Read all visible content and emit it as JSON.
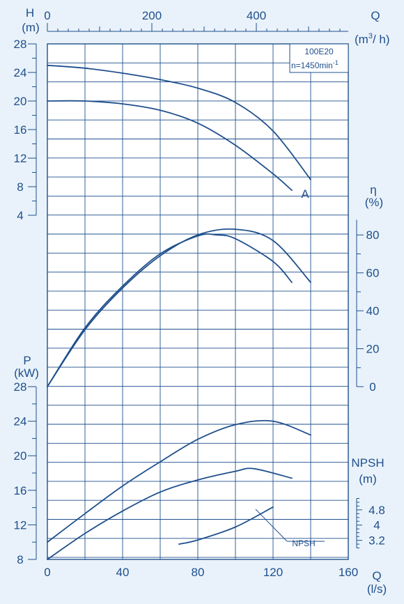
{
  "chart_data": {
    "type": "line",
    "model_box": {
      "model": "100E20",
      "speed": "n=1450min",
      "speed_exp": "-1"
    },
    "axes": {
      "q_ls": {
        "name": "Q",
        "unit": "(l/s)",
        "range": [
          0,
          160
        ],
        "ticks": [
          0,
          40,
          80,
          120,
          160
        ],
        "tick_labels": [
          "0",
          "40",
          "80",
          "120",
          "160"
        ]
      },
      "q_m3h": {
        "name": "Q",
        "unit_base": "(m",
        "unit_exp": "3",
        "unit_tail": "/ h)",
        "range": [
          0,
          576
        ],
        "ticks": [
          0,
          200,
          400
        ],
        "tick_labels": [
          "0",
          "200",
          "400"
        ]
      },
      "head": {
        "name": "H",
        "unit": "(m)",
        "range": [
          4,
          28
        ],
        "ticks": [
          4,
          8,
          12,
          16,
          20,
          24,
          28
        ],
        "tick_labels": [
          "4",
          "8",
          "12",
          "16",
          "20",
          "24",
          "28"
        ]
      },
      "efficiency": {
        "name": "η",
        "unit": "(%)",
        "range": [
          0,
          90
        ],
        "ticks": [
          0,
          20,
          40,
          60,
          80
        ],
        "tick_labels": [
          "0",
          "20",
          "40",
          "60",
          "80"
        ]
      },
      "power": {
        "name": "P",
        "unit": "(kW)",
        "range": [
          8,
          28
        ],
        "ticks": [
          8,
          12,
          16,
          20,
          24,
          28
        ],
        "tick_labels": [
          "8",
          "12",
          "16",
          "20",
          "24",
          "28"
        ]
      },
      "npsh": {
        "name": "NPSH",
        "unit": "(m)",
        "range": [
          2.6,
          5.6
        ],
        "ticks": [
          3.2,
          4,
          4.8
        ],
        "tick_labels": [
          "3.2",
          "4",
          "4.8"
        ]
      }
    },
    "series": [
      {
        "panel": "head",
        "x": [
          0,
          20,
          40,
          60,
          80,
          100,
          120,
          140
        ],
        "y": [
          25,
          24.6,
          23.9,
          23,
          21.8,
          19.8,
          15.8,
          9
        ]
      },
      {
        "panel": "head",
        "name": "A",
        "x": [
          0,
          20,
          40,
          60,
          80,
          100,
          120,
          130
        ],
        "y": [
          20,
          20,
          19.6,
          18.7,
          16.9,
          13.8,
          9.8,
          7.5
        ]
      },
      {
        "panel": "efficiency",
        "x": [
          0,
          20,
          40,
          60,
          80,
          100,
          120,
          140
        ],
        "y": [
          0,
          30,
          52,
          69,
          80,
          83,
          77,
          55
        ]
      },
      {
        "panel": "efficiency",
        "x": [
          0,
          20,
          40,
          60,
          80,
          90,
          100,
          120,
          130
        ],
        "y": [
          0,
          31,
          53,
          70,
          79.5,
          80,
          78,
          66,
          55
        ]
      },
      {
        "panel": "power",
        "x": [
          0,
          20,
          40,
          60,
          80,
          100,
          120,
          140
        ],
        "y": [
          10,
          13.3,
          16.5,
          19.3,
          21.9,
          23.6,
          24,
          22.4
        ]
      },
      {
        "panel": "power",
        "x": [
          0,
          20,
          40,
          60,
          80,
          100,
          110,
          130
        ],
        "y": [
          8,
          11,
          13.6,
          15.8,
          17.2,
          18.2,
          18.5,
          17.4
        ]
      },
      {
        "panel": "npsh",
        "name": "NPSH",
        "x": [
          70,
          80,
          100,
          120
        ],
        "y": [
          3.0,
          3.22,
          3.9,
          4.95
        ]
      }
    ],
    "grid": true
  }
}
